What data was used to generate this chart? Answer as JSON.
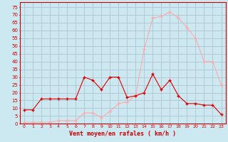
{
  "x": [
    0,
    1,
    2,
    3,
    4,
    5,
    6,
    7,
    8,
    9,
    10,
    11,
    12,
    13,
    14,
    15,
    16,
    17,
    18,
    19,
    20,
    21,
    22,
    23
  ],
  "wind_avg": [
    9,
    9,
    16,
    16,
    16,
    16,
    16,
    30,
    28,
    22,
    30,
    30,
    17,
    18,
    20,
    32,
    22,
    28,
    18,
    13,
    13,
    12,
    12,
    6
  ],
  "wind_gust": [
    1,
    1,
    1,
    1,
    2,
    2,
    2,
    7,
    7,
    4,
    8,
    13,
    14,
    18,
    48,
    68,
    69,
    72,
    68,
    62,
    55,
    40,
    40,
    25
  ],
  "bg_color": "#cce8f0",
  "grid_color": "#aabccc",
  "line_avg_color": "#dd0000",
  "line_gust_color": "#ffaaaa",
  "xlabel": "Vent moyen/en rafales ( km/h )",
  "xlabel_color": "#cc0000",
  "ylabel_ticks": [
    0,
    5,
    10,
    15,
    20,
    25,
    30,
    35,
    40,
    45,
    50,
    55,
    60,
    65,
    70,
    75
  ],
  "ylim": [
    0,
    78
  ],
  "marker": "+",
  "marker_size": 3,
  "tick_color": "#cc0000",
  "spine_color": "#cc0000",
  "linewidth": 0.8
}
